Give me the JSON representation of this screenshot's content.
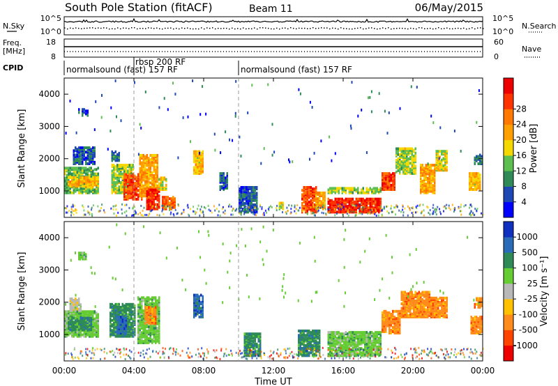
{
  "header": {
    "title": "South Pole Station (fitACF)",
    "beam": "Beam 11",
    "date": "06/May/2015"
  },
  "top_panels": {
    "left_labels": [
      "N.Sky",
      "Freq.",
      "[MHz]",
      "CPID"
    ],
    "right_labels": [
      "N.Search",
      "Nave"
    ],
    "noise_ticks_left": [
      "10^5",
      "10^0"
    ],
    "noise_ticks_right": [
      "10^5",
      "10^0"
    ],
    "freq_ticks": [
      "18",
      "8"
    ],
    "nave_ticks": [
      "60",
      "0"
    ],
    "cpid_segments": [
      {
        "label": "normalsound (fast) 157 RF",
        "start_hour": 0
      },
      {
        "label": "rbsp 200 RF",
        "start_hour": 4.0
      },
      {
        "label": "normalsound (fast) 157 RF",
        "start_hour": 10.0
      }
    ]
  },
  "panels": {
    "ylabel": "Slant Range [km]",
    "xlabel": "Time UT",
    "y_ticks": [
      "1000",
      "2000",
      "3000",
      "4000"
    ],
    "x_ticks": [
      "00:00",
      "04:00",
      "08:00",
      "12:00",
      "16:00",
      "20:00",
      "00:00"
    ],
    "power_colorbar": {
      "label": "Power [dB]",
      "ticks": [
        "4",
        "8",
        "12",
        "16",
        "20",
        "24",
        "28"
      ],
      "colors": [
        "#0000ff",
        "#1e49b4",
        "#2e8b57",
        "#5cbf50",
        "#f5d800",
        "#ffa000",
        "#ff7800",
        "#ff3300",
        "#ee0000"
      ]
    },
    "velocity_colorbar": {
      "label": "Velocity [m s⁻¹]",
      "ticks": [
        "1000",
        "500",
        "100",
        "25",
        "-25",
        "-100",
        "-500",
        "-1000"
      ],
      "colors": [
        "#1030c0",
        "#2a6cb8",
        "#2e8b57",
        "#66cc33",
        "#b8b8b8",
        "#ffc000",
        "#ff8c1a",
        "#ff4400",
        "#ee0000"
      ]
    }
  },
  "chart_data": [
    {
      "type": "heatmap",
      "name": "Power",
      "x_range_hours": [
        0,
        24
      ],
      "y_range_km": [
        180,
        4500
      ],
      "colorbar_range_db": [
        0,
        32
      ],
      "blobs": [
        {
          "t0": 0.0,
          "t1": 2.0,
          "r0": 900,
          "r1": 1700,
          "level": 12
        },
        {
          "t0": 0.2,
          "t1": 2.0,
          "r0": 1100,
          "r1": 1400,
          "level": 18
        },
        {
          "t0": 0.5,
          "t1": 1.8,
          "r0": 1800,
          "r1": 2300,
          "level": 6
        },
        {
          "t0": 0.8,
          "t1": 1.4,
          "r0": 3300,
          "r1": 3500,
          "level": 4
        },
        {
          "t0": 2.7,
          "t1": 3.2,
          "r0": 1900,
          "r1": 2200,
          "level": 8
        },
        {
          "t0": 2.7,
          "t1": 4.0,
          "r0": 900,
          "r1": 1800,
          "level": 14
        },
        {
          "t0": 3.4,
          "t1": 4.4,
          "r0": 700,
          "r1": 1500,
          "level": 26
        },
        {
          "t0": 4.3,
          "t1": 5.3,
          "r0": 800,
          "r1": 2100,
          "level": 20
        },
        {
          "t0": 4.7,
          "t1": 5.4,
          "r0": 400,
          "r1": 1000,
          "level": 28
        },
        {
          "t0": 5.4,
          "t1": 5.8,
          "r0": 1000,
          "r1": 1400,
          "level": 16
        },
        {
          "t0": 5.6,
          "t1": 6.3,
          "r0": 400,
          "r1": 800,
          "level": 24
        },
        {
          "t0": 7.4,
          "t1": 7.9,
          "r0": 1500,
          "r1": 2200,
          "level": 18
        },
        {
          "t0": 8.9,
          "t1": 9.3,
          "r0": 1000,
          "r1": 1500,
          "level": 6
        },
        {
          "t0": 10.0,
          "t1": 11.0,
          "r0": 300,
          "r1": 1100,
          "level": 6
        },
        {
          "t0": 12.3,
          "t1": 12.6,
          "r0": 400,
          "r1": 600,
          "level": 16
        },
        {
          "t0": 13.6,
          "t1": 14.4,
          "r0": 300,
          "r1": 1100,
          "level": 26
        },
        {
          "t0": 14.4,
          "t1": 14.9,
          "r0": 400,
          "r1": 900,
          "level": 20
        },
        {
          "t0": 15.1,
          "t1": 18.2,
          "r0": 300,
          "r1": 750,
          "level": 28
        },
        {
          "t0": 15.1,
          "t1": 18.2,
          "r0": 900,
          "r1": 1050,
          "level": 14
        },
        {
          "t0": 18.2,
          "t1": 19.0,
          "r0": 1000,
          "r1": 1500,
          "level": 26
        },
        {
          "t0": 19.0,
          "t1": 20.2,
          "r0": 1500,
          "r1": 2300,
          "level": 14
        },
        {
          "t0": 20.4,
          "t1": 21.3,
          "r0": 900,
          "r1": 1800,
          "level": 20
        },
        {
          "t0": 21.3,
          "t1": 22.0,
          "r0": 1600,
          "r1": 2200,
          "level": 16
        },
        {
          "t0": 23.2,
          "t1": 23.9,
          "r0": 1000,
          "r1": 1500,
          "level": 18
        },
        {
          "t0": 23.5,
          "t1": 24.0,
          "r0": 1800,
          "r1": 2100,
          "level": 8
        }
      ]
    },
    {
      "type": "heatmap",
      "name": "Velocity",
      "x_range_hours": [
        0,
        24
      ],
      "y_range_km": [
        180,
        4500
      ],
      "colorbar_range_ms": [
        -1000,
        1000
      ],
      "blobs": [
        {
          "t0": 0.0,
          "t1": 2.0,
          "r0": 900,
          "r1": 1700,
          "level": 3
        },
        {
          "t0": 0.2,
          "t1": 1.6,
          "r0": 1100,
          "r1": 1500,
          "level": 2
        },
        {
          "t0": 0.3,
          "t1": 0.9,
          "r0": 1700,
          "r1": 2100,
          "level": 4
        },
        {
          "t0": 0.8,
          "t1": 1.3,
          "r0": 3300,
          "r1": 3500,
          "level": 3
        },
        {
          "t0": 2.6,
          "t1": 4.1,
          "r0": 900,
          "r1": 1900,
          "level": 2
        },
        {
          "t0": 4.2,
          "t1": 5.4,
          "r0": 700,
          "r1": 2100,
          "level": 3
        },
        {
          "t0": 3.0,
          "t1": 3.6,
          "r0": 1000,
          "r1": 1500,
          "level": 1
        },
        {
          "t0": 4.6,
          "t1": 5.2,
          "r0": 1300,
          "r1": 1800,
          "level": 6
        },
        {
          "t0": 7.4,
          "t1": 7.9,
          "r0": 1500,
          "r1": 2200,
          "level": 1
        },
        {
          "t0": 10.3,
          "t1": 11.2,
          "r0": 300,
          "r1": 1000,
          "level": 2
        },
        {
          "t0": 13.4,
          "t1": 14.6,
          "r0": 300,
          "r1": 1100,
          "level": 2
        },
        {
          "t0": 15.1,
          "t1": 18.2,
          "r0": 300,
          "r1": 1050,
          "level": 3
        },
        {
          "t0": 18.2,
          "t1": 19.3,
          "r0": 1000,
          "r1": 1700,
          "level": 6
        },
        {
          "t0": 19.3,
          "t1": 21.0,
          "r0": 1500,
          "r1": 2300,
          "level": 6
        },
        {
          "t0": 21.0,
          "t1": 22.0,
          "r0": 1500,
          "r1": 2100,
          "level": 6
        },
        {
          "t0": 23.3,
          "t1": 24.0,
          "r0": 1000,
          "r1": 1500,
          "level": 6
        },
        {
          "t0": 23.5,
          "t1": 24.0,
          "r0": 1800,
          "r1": 2100,
          "level": 6
        }
      ]
    }
  ]
}
